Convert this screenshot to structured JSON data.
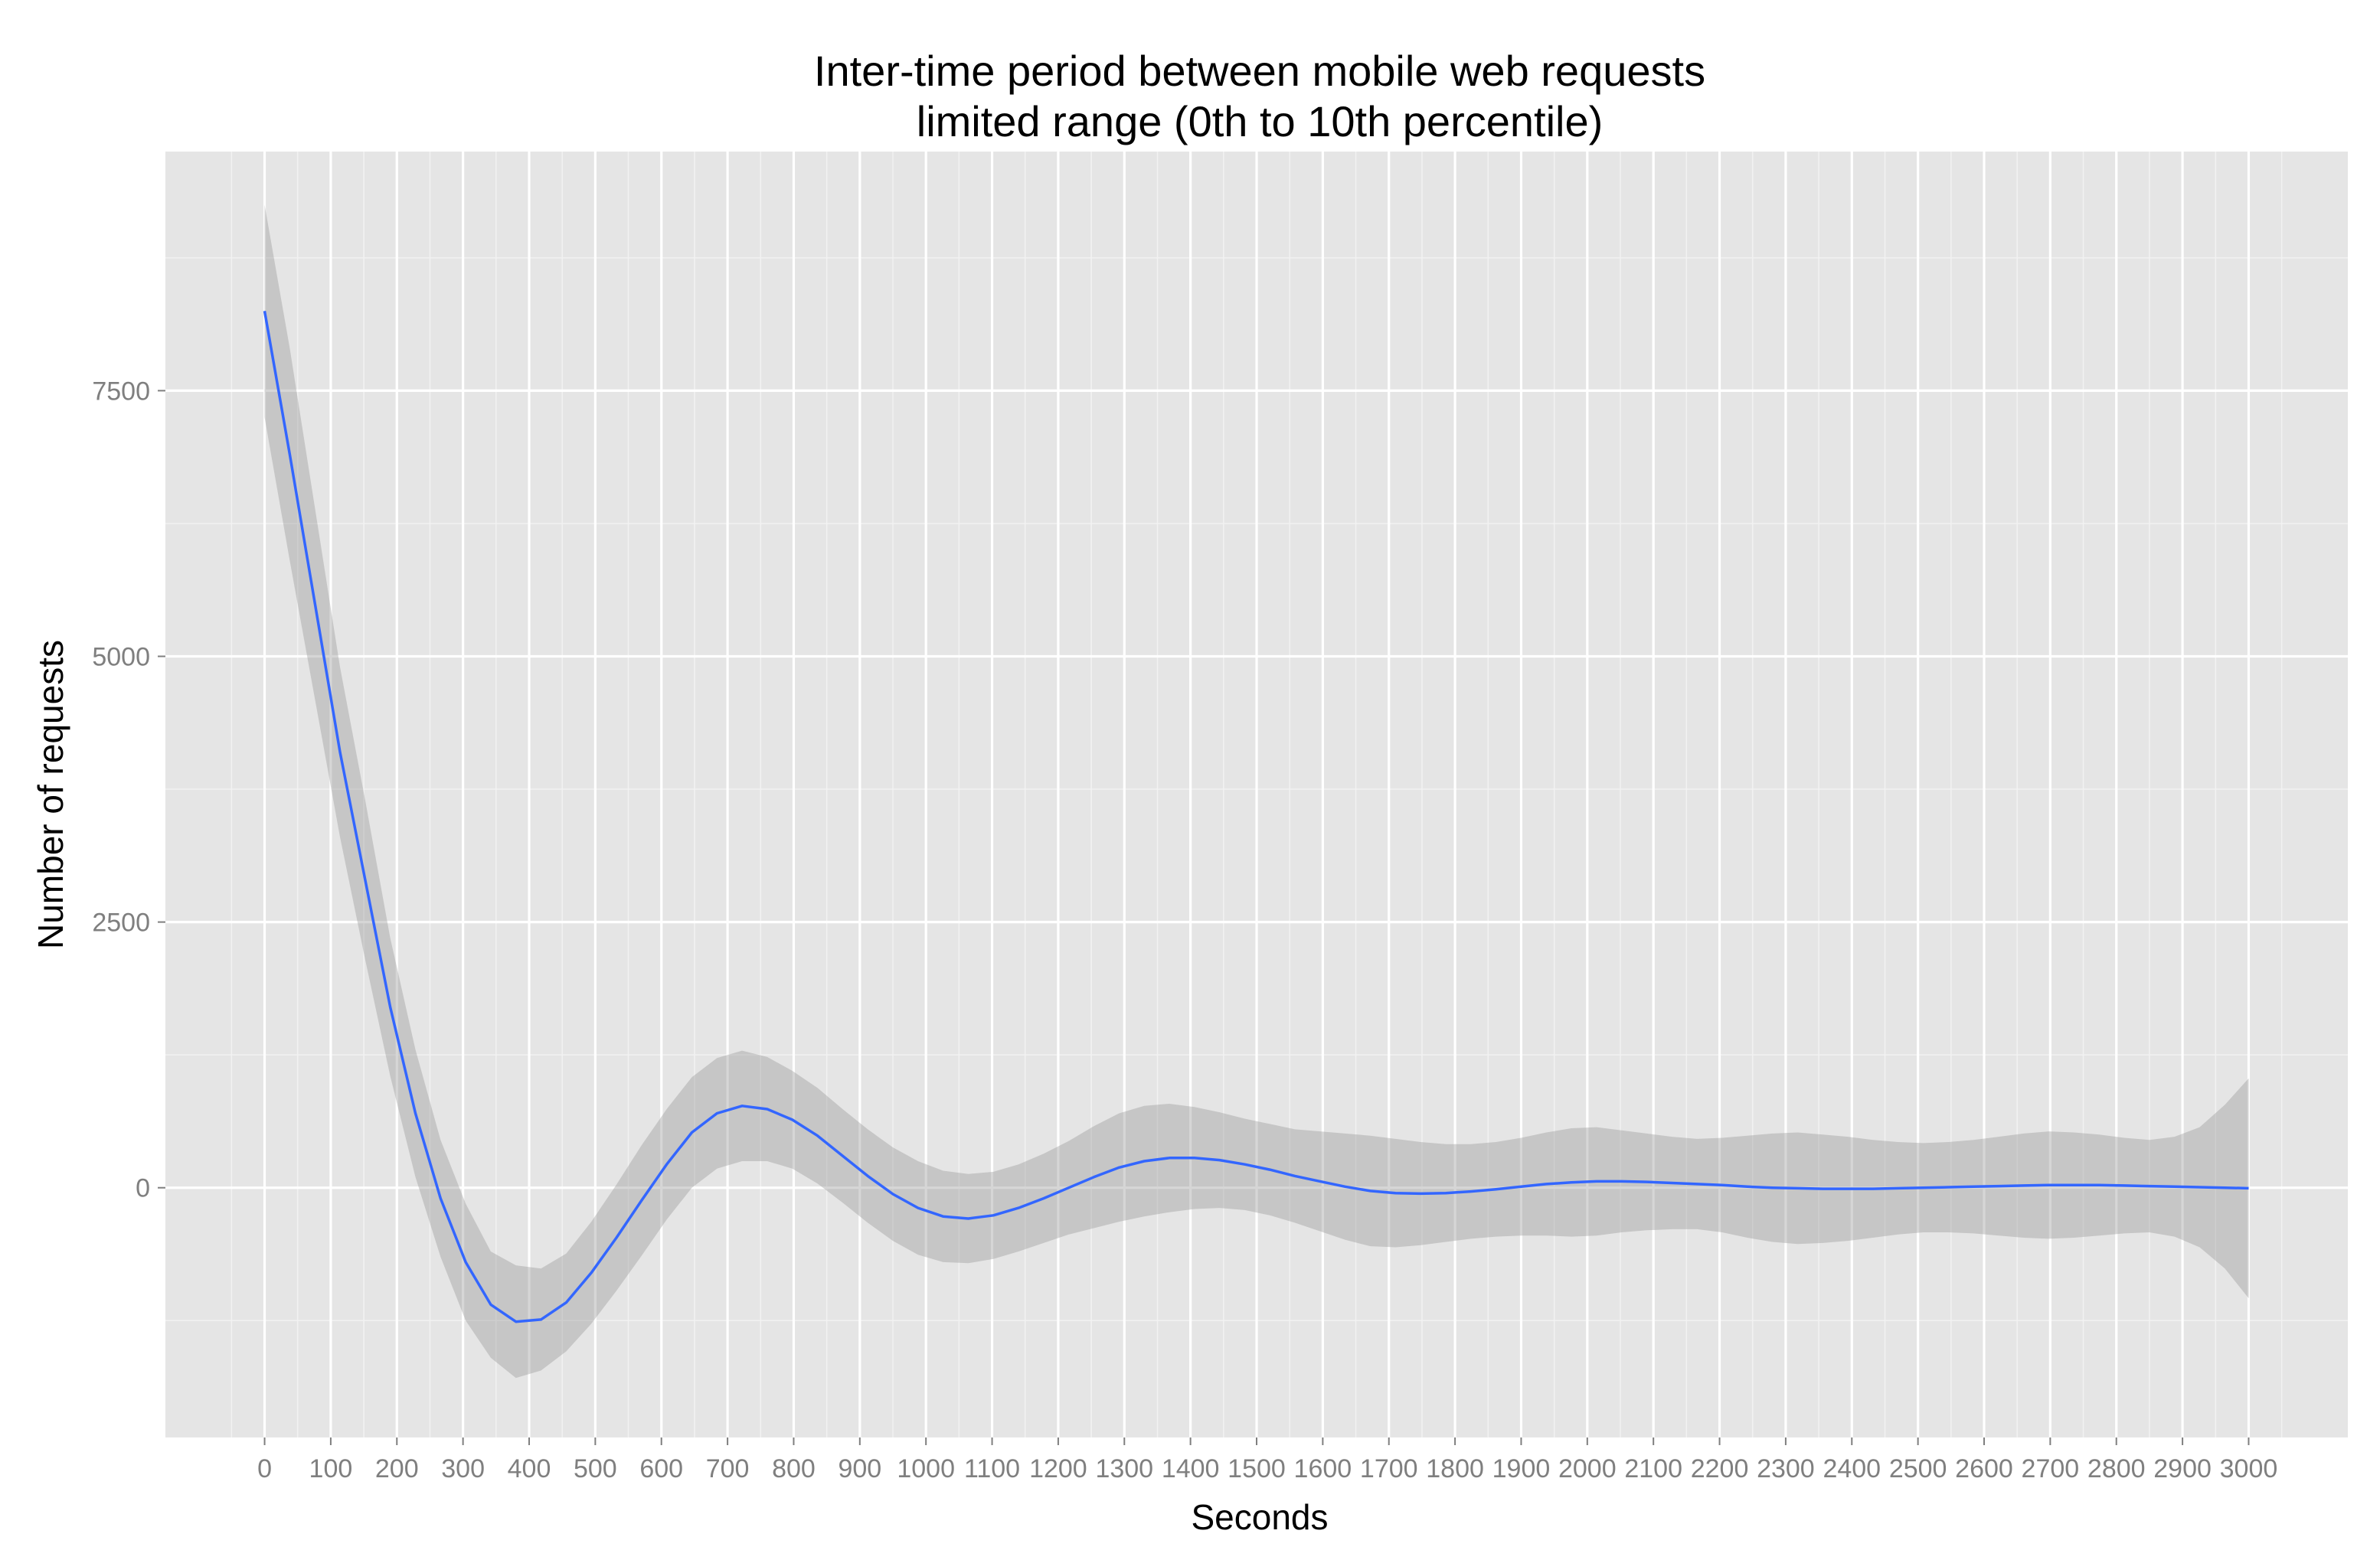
{
  "chart_data": {
    "type": "line",
    "title_lines": [
      "Inter-time period between mobile web requests",
      "limited range (0th to 10th percentile)"
    ],
    "xlabel": "Seconds",
    "ylabel": "Number of requests",
    "x_ticks": [
      0,
      100,
      200,
      300,
      400,
      500,
      600,
      700,
      800,
      900,
      1000,
      1100,
      1200,
      1300,
      1400,
      1500,
      1600,
      1700,
      1800,
      1900,
      2000,
      2100,
      2200,
      2300,
      2400,
      2500,
      2600,
      2700,
      2800,
      2900,
      3000
    ],
    "y_ticks": [
      0,
      2500,
      5000,
      7500
    ],
    "xlim": [
      -150,
      3150
    ],
    "ylim": [
      -2350,
      9750
    ],
    "grid": true,
    "background": "#e5e5e5",
    "series": [
      {
        "color": "#3366ff",
        "band_color": "#999999",
        "x": [
          0,
          38,
          76,
          114,
          152,
          190,
          228,
          266,
          304,
          342,
          380,
          418,
          456,
          494,
          532,
          570,
          608,
          646,
          684,
          722,
          760,
          798,
          836,
          874,
          912,
          950,
          988,
          1026,
          1064,
          1102,
          1140,
          1178,
          1216,
          1254,
          1292,
          1330,
          1368,
          1406,
          1444,
          1482,
          1520,
          1558,
          1596,
          1634,
          1672,
          1710,
          1748,
          1786,
          1824,
          1862,
          1900,
          1938,
          1976,
          2014,
          2052,
          2090,
          2128,
          2166,
          2204,
          2242,
          2280,
          2318,
          2356,
          2394,
          2432,
          2470,
          2508,
          2546,
          2584,
          2622,
          2660,
          2698,
          2736,
          2774,
          2812,
          2850,
          2888,
          2926,
          2964,
          3000
        ],
        "y": [
          8250,
          6900,
          5500,
          4100,
          2900,
          1700,
          700,
          -100,
          -700,
          -1100,
          -1260,
          -1240,
          -1080,
          -800,
          -470,
          -120,
          220,
          520,
          700,
          770,
          740,
          640,
          490,
          300,
          110,
          -60,
          -190,
          -270,
          -290,
          -260,
          -190,
          -100,
          0,
          100,
          190,
          250,
          280,
          280,
          260,
          220,
          170,
          110,
          60,
          10,
          -30,
          -50,
          -55,
          -50,
          -35,
          -15,
          10,
          35,
          50,
          60,
          60,
          55,
          45,
          35,
          25,
          10,
          0,
          -5,
          -10,
          -10,
          -10,
          -5,
          0,
          5,
          10,
          15,
          20,
          25,
          25,
          25,
          20,
          15,
          10,
          5,
          0,
          -5
        ],
        "lower": [
          7250,
          5900,
          4600,
          3300,
          2150,
          1050,
          100,
          -650,
          -1250,
          -1600,
          -1790,
          -1720,
          -1540,
          -1280,
          -970,
          -640,
          -300,
          0,
          180,
          250,
          250,
          180,
          40,
          -140,
          -330,
          -500,
          -630,
          -700,
          -710,
          -670,
          -600,
          -520,
          -440,
          -380,
          -320,
          -270,
          -230,
          -200,
          -190,
          -210,
          -260,
          -330,
          -410,
          -490,
          -550,
          -560,
          -540,
          -510,
          -480,
          -460,
          -450,
          -450,
          -460,
          -450,
          -420,
          -400,
          -390,
          -390,
          -420,
          -470,
          -510,
          -530,
          -520,
          -500,
          -470,
          -440,
          -420,
          -420,
          -430,
          -450,
          -470,
          -480,
          -470,
          -450,
          -430,
          -420,
          -460,
          -560,
          -760,
          -1040
        ],
        "upper": [
          9250,
          7900,
          6400,
          4900,
          3650,
          2350,
          1300,
          450,
          -150,
          -600,
          -730,
          -760,
          -620,
          -320,
          30,
          400,
          740,
          1040,
          1220,
          1290,
          1230,
          1100,
          940,
          740,
          550,
          380,
          250,
          160,
          130,
          150,
          220,
          320,
          440,
          580,
          700,
          770,
          790,
          760,
          710,
          650,
          600,
          550,
          530,
          510,
          490,
          460,
          430,
          410,
          410,
          430,
          470,
          520,
          560,
          570,
          540,
          510,
          480,
          460,
          470,
          490,
          510,
          520,
          500,
          480,
          450,
          430,
          420,
          430,
          450,
          480,
          510,
          530,
          520,
          500,
          470,
          450,
          480,
          570,
          780,
          1030
        ]
      }
    ]
  }
}
